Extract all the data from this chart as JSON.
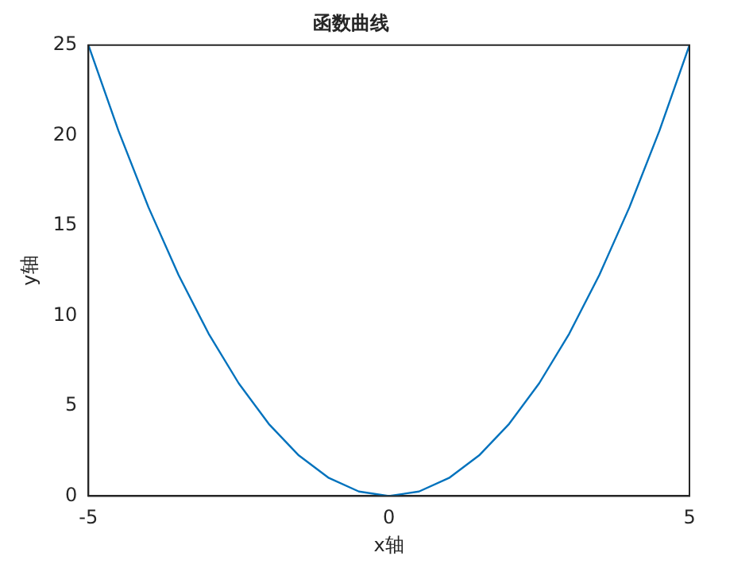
{
  "chart_data": {
    "type": "line",
    "title": "函数曲线",
    "xlabel": "x轴",
    "ylabel": "y轴",
    "x": [
      -5,
      -4.5,
      -4,
      -3.5,
      -3,
      -2.5,
      -2,
      -1.5,
      -1,
      -0.5,
      0,
      0.5,
      1,
      1.5,
      2,
      2.5,
      3,
      3.5,
      4,
      4.5,
      5
    ],
    "series": [
      {
        "color": "#0072bd",
        "values": [
          25,
          20.25,
          16,
          12.25,
          9,
          6.25,
          4,
          2.25,
          1,
          0.25,
          0,
          0.25,
          1,
          2.25,
          4,
          6.25,
          9,
          12.25,
          16,
          20.25,
          25
        ]
      }
    ],
    "xlim": [
      -5,
      5
    ],
    "xticks": [
      -5,
      0,
      5
    ],
    "ylim": [
      0,
      25
    ],
    "yticks": [
      0,
      5,
      10,
      15,
      20,
      25
    ],
    "grid": false,
    "legend": false,
    "marker": "none",
    "line_style": "solid"
  }
}
